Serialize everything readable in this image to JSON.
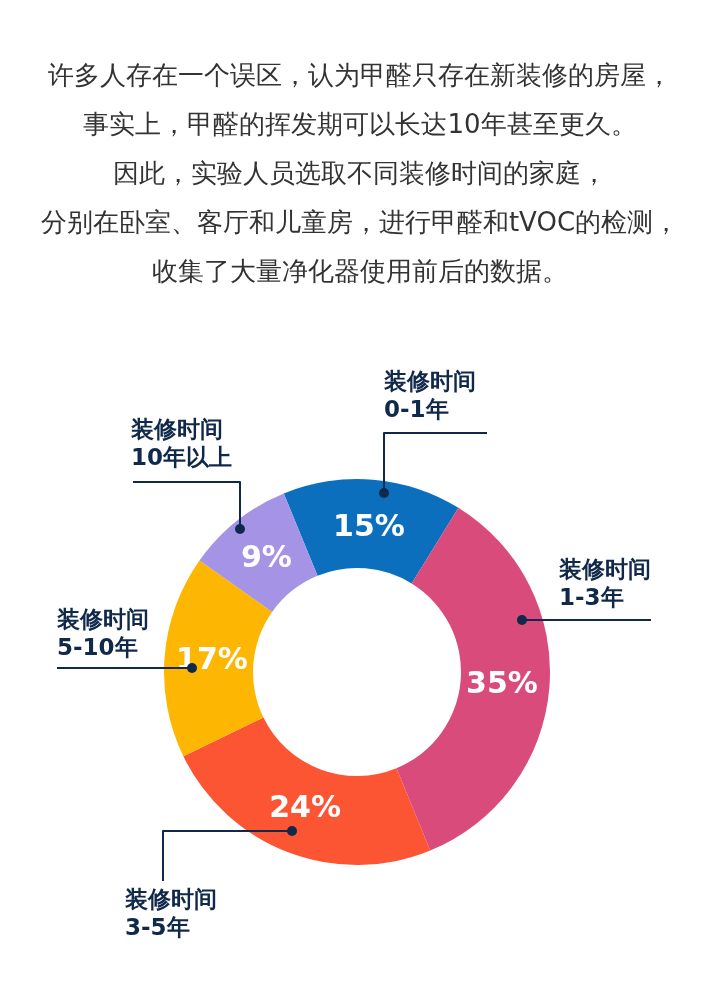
{
  "chart_data": {
    "type": "donut",
    "annotations": [
      "许多人存在一个误区，认为甲醛只存在新装修的房屋，",
      "事实上，甲醛的挥发期可以长达10年甚至更久。",
      "因此，实验人员选取不同装修时间的家庭，",
      "分别在卧室、客厅和儿童房，进行甲醛和tVOC的检测，",
      "收集了大量净化器使用前后的数据。"
    ],
    "categories": [
      "装修时间\n0-1年",
      "装修时间\n1-3年",
      "装修时间\n3-5年",
      "装修时间\n5-10年",
      "装修时间\n10年以上"
    ],
    "values": [
      15,
      35,
      24,
      17,
      9
    ],
    "colors": [
      "#0b6fbe",
      "#d94b7b",
      "#fb5534",
      "#fdb702",
      "#a594e6"
    ],
    "value_labels": [
      "15%",
      "35%",
      "24%",
      "17%",
      "9%"
    ]
  }
}
